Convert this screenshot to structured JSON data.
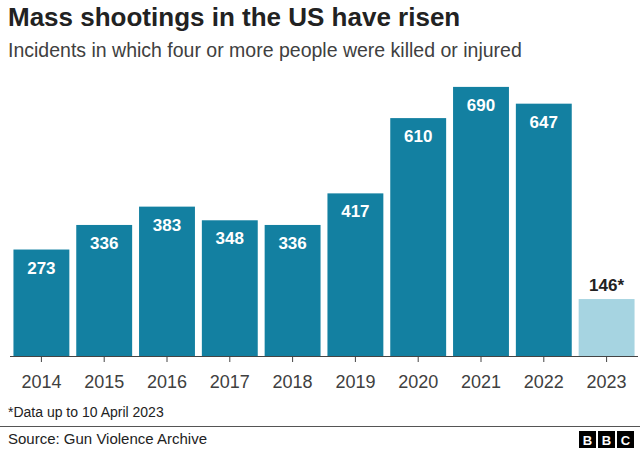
{
  "chart_data": {
    "type": "bar",
    "title": "Mass shootings in the US have risen",
    "subtitle": "Incidents in which four or more people were killed or injured",
    "categories": [
      "2014",
      "2015",
      "2016",
      "2017",
      "2018",
      "2019",
      "2020",
      "2021",
      "2022",
      "2023"
    ],
    "values": [
      273,
      336,
      383,
      348,
      336,
      417,
      610,
      690,
      647,
      146
    ],
    "value_labels": [
      "273",
      "336",
      "383",
      "348",
      "336",
      "417",
      "610",
      "690",
      "647",
      "146*"
    ],
    "colors": [
      "#1380a1",
      "#1380a1",
      "#1380a1",
      "#1380a1",
      "#1380a1",
      "#1380a1",
      "#1380a1",
      "#1380a1",
      "#1380a1",
      "#a6d4e1"
    ],
    "ylim": [
      0,
      700
    ],
    "data_labels": true,
    "tick_labels": "x",
    "grid": false,
    "annotations": [
      "*Data up to 10 April 2023"
    ],
    "source": "Source: Gun Violence Archive",
    "logo": [
      "B",
      "B",
      "C"
    ]
  }
}
